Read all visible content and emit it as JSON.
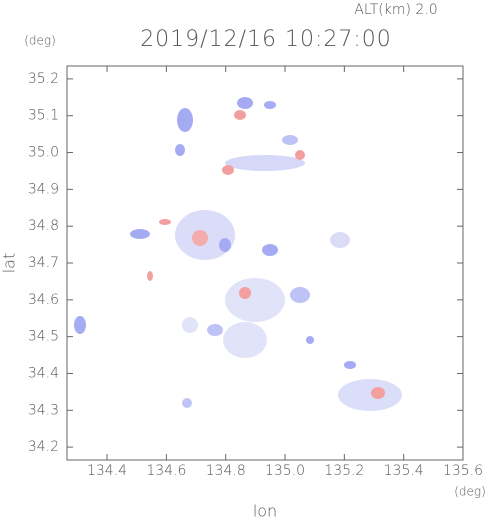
{
  "chart_data": {
    "type": "map",
    "title": "2019/12/16 10:27:00",
    "subtitle": "ALT(km) 2.0",
    "x_label": "lon",
    "x_unit": "(deg)",
    "y_label": "lat",
    "y_unit": "(deg)",
    "xlim": [
      134.265,
      135.6
    ],
    "xticks": [
      134.4,
      134.6,
      134.8,
      {
        "value": 135,
        "label": "135.0"
      },
      135.2,
      135.4,
      135.6
    ],
    "ylim": [
      34.165,
      35.235
    ],
    "yticks": [
      34.2,
      34.3,
      34.4,
      34.5,
      34.6,
      34.7,
      34.8,
      34.9,
      {
        "value": 35,
        "label": "35.0"
      },
      35.1,
      35.2
    ]
  }
}
